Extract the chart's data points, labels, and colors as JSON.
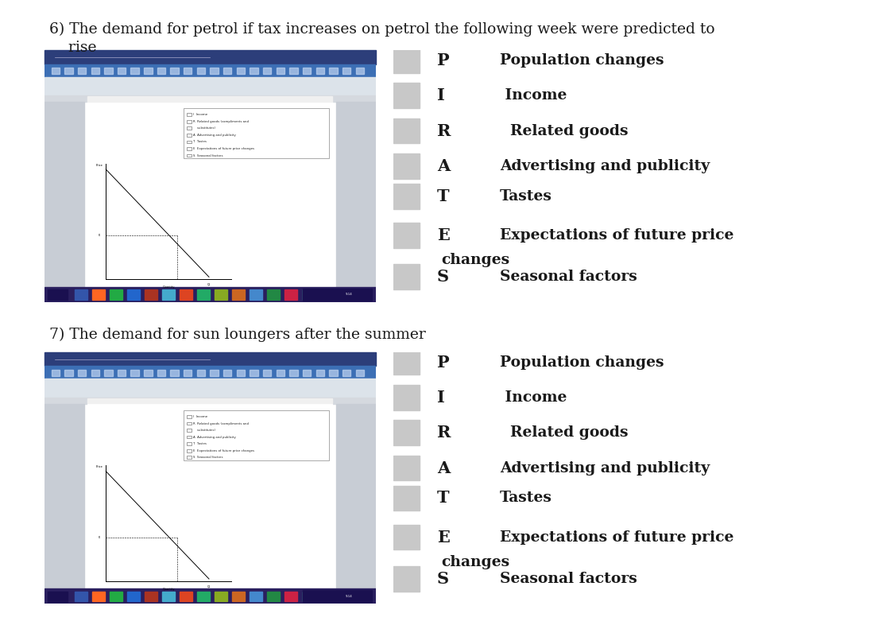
{
  "bg_color": "#ffffff",
  "title6_line1": "6) The demand for petrol if tax increases on petrol the following week were predicted to",
  "title6_line2": "    rise",
  "title7": "7) The demand for sun loungers after the summer",
  "pirates_letters": [
    "P",
    "I",
    "R",
    "A",
    "T",
    "E",
    "S"
  ],
  "pirates_descriptions_line1": [
    "Population changes",
    " Income",
    "  Related goods",
    "Advertising and publicity",
    "Tastes",
    "Expectations of future price",
    "Seasonal factors"
  ],
  "pirates_descriptions_line2": [
    "",
    "",
    "",
    "",
    "",
    "changes",
    ""
  ],
  "square_color": "#c8c8c8",
  "text_color": "#1a1a1a",
  "title_fontsize": 13.5,
  "letter_fontsize": 15,
  "desc_fontsize": 13.5,
  "font_family": "DejaVu Serif",
  "font_weight": "bold",
  "screen_bg": "#e8e8e8",
  "screen_doc": "#f5f5f5",
  "screen_white": "#ffffff",
  "screen_toolbar_dark": "#2c3e7a",
  "screen_toolbar_blue": "#3c6fb5",
  "screen_ribbon": "#dce3ea",
  "screen_taskbar": "#2a1f5f"
}
